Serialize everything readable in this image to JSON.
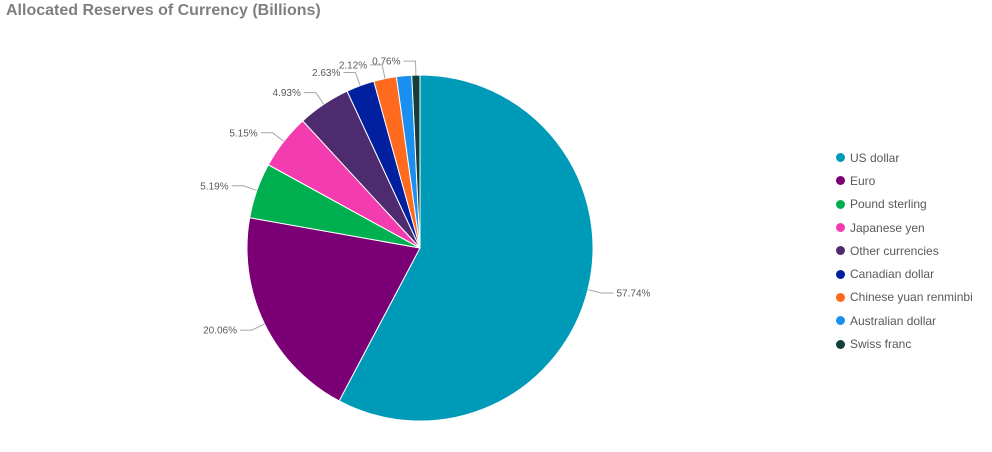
{
  "chart_data": {
    "type": "pie",
    "title": "Allocated Reserves of Currency (Billions)",
    "legend_position": "right",
    "series": [
      {
        "label": "US dollar",
        "value": 57.74,
        "display": "57.74%",
        "color": "#009ab9"
      },
      {
        "label": "Euro",
        "value": 20.06,
        "display": "20.06%",
        "color": "#7b0075"
      },
      {
        "label": "Pound sterling",
        "value": 5.19,
        "display": "5.19%",
        "color": "#00b050"
      },
      {
        "label": "Japanese yen",
        "value": 5.15,
        "display": "5.15%",
        "color": "#f23cb0"
      },
      {
        "label": "Other currencies",
        "value": 4.93,
        "display": "4.93%",
        "color": "#4e2a6e"
      },
      {
        "label": "Canadian dollar",
        "value": 2.63,
        "display": "2.63%",
        "color": "#00209f"
      },
      {
        "label": "Chinese yuan renminbi",
        "value": 2.12,
        "display": "2.12%",
        "color": "#ff6a1f"
      },
      {
        "label": "Australian dollar",
        "value": 1.42,
        "display": "",
        "color": "#1a8fef"
      },
      {
        "label": "Swiss franc",
        "value": 0.76,
        "display": "0.76%",
        "color": "#113f3a"
      }
    ]
  }
}
